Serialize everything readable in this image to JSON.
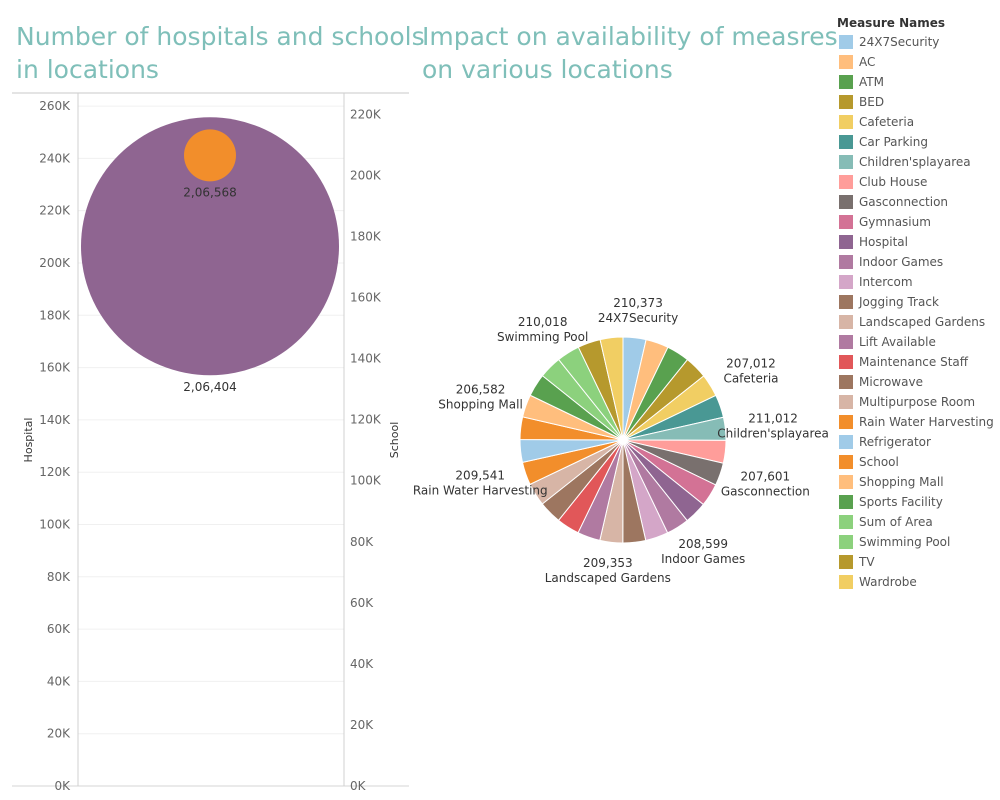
{
  "left_title": [
    "Number of hospitals and schools",
    "in locations"
  ],
  "right_title": [
    "Impact on availability of measres",
    "on various locations"
  ],
  "chart_data": [
    {
      "type": "scatter",
      "title": "Number of hospitals and schools in locations",
      "ylabel": "Hospital",
      "y2label": "School",
      "ylim": [
        0,
        265000
      ],
      "y2lim": [
        0,
        227000
      ],
      "yticks": [
        "0K",
        "20K",
        "40K",
        "60K",
        "80K",
        "100K",
        "120K",
        "140K",
        "160K",
        "180K",
        "200K",
        "220K",
        "240K",
        "260K"
      ],
      "y2ticks": [
        "0K",
        "20K",
        "40K",
        "60K",
        "80K",
        "100K",
        "120K",
        "140K",
        "160K",
        "180K",
        "200K",
        "220K"
      ],
      "points": [
        {
          "name": "Hospital",
          "value": 206404,
          "label": "2,06,404",
          "color": "#8f6591"
        },
        {
          "name": "School",
          "value": 206568,
          "label": "2,06,568",
          "color": "#f28e2b"
        }
      ]
    },
    {
      "type": "pie",
      "title": "Impact on availability of measres on various locations",
      "legend_title": "Measure Names",
      "legend_position": "right",
      "slices": [
        {
          "name": "24X7Security",
          "value": 210373,
          "color": "#a0cbe8"
        },
        {
          "name": "AC",
          "value": 209100,
          "color": "#ffbe7d"
        },
        {
          "name": "ATM",
          "value": 208500,
          "color": "#59a14f"
        },
        {
          "name": "BED",
          "value": 208300,
          "color": "#b6992d"
        },
        {
          "name": "Cafeteria",
          "value": 207012,
          "color": "#f1ce63"
        },
        {
          "name": "Car Parking",
          "value": 208800,
          "color": "#499894"
        },
        {
          "name": "Children'splayarea",
          "value": 211012,
          "color": "#86bcb6"
        },
        {
          "name": "Club House",
          "value": 208200,
          "color": "#ff9d9a"
        },
        {
          "name": "Gasconnection",
          "value": 207601,
          "color": "#79706e"
        },
        {
          "name": "Gymnasium",
          "value": 208900,
          "color": "#d37295"
        },
        {
          "name": "Hospital",
          "value": 206404,
          "color": "#8f6591"
        },
        {
          "name": "Indoor Games",
          "value": 208599,
          "color": "#b07aa1"
        },
        {
          "name": "Intercom",
          "value": 209000,
          "color": "#d4a6c8"
        },
        {
          "name": "Jogging Track",
          "value": 208700,
          "color": "#9d7660"
        },
        {
          "name": "Landscaped Gardens",
          "value": 209353,
          "color": "#d7b5a6"
        },
        {
          "name": "Lift Available",
          "value": 208600,
          "color": "#b07aa1"
        },
        {
          "name": "Maintenance Staff",
          "value": 208400,
          "color": "#e15759"
        },
        {
          "name": "Microwave",
          "value": 208900,
          "color": "#9d7660"
        },
        {
          "name": "Multipurpose Room",
          "value": 209200,
          "color": "#d7b5a6"
        },
        {
          "name": "Rain Water Harvesting",
          "value": 209541,
          "color": "#f28e2b"
        },
        {
          "name": "Refrigerator",
          "value": 208100,
          "color": "#a0cbe8"
        },
        {
          "name": "School",
          "value": 206568,
          "color": "#f28e2b"
        },
        {
          "name": "Shopping Mall",
          "value": 206582,
          "color": "#ffbe7d"
        },
        {
          "name": "Sports Facility",
          "value": 208700,
          "color": "#59a14f"
        },
        {
          "name": "Sum of Area",
          "value": 206900,
          "color": "#8cd17d"
        },
        {
          "name": "Swimming Pool",
          "value": 210018,
          "color": "#8cd17d"
        },
        {
          "name": "TV",
          "value": 208000,
          "color": "#b6992d"
        },
        {
          "name": "Wardrobe",
          "value": 208300,
          "color": "#f1ce63"
        }
      ],
      "labels": [
        {
          "name": "24X7Security",
          "label": "210,373"
        },
        {
          "name": "Cafeteria",
          "label": "207,012"
        },
        {
          "name": "Children'splayarea",
          "label": "211,012"
        },
        {
          "name": "Gasconnection",
          "label": "207,601"
        },
        {
          "name": "Indoor Games",
          "label": "208,599"
        },
        {
          "name": "Landscaped Gardens",
          "label": "209,353"
        },
        {
          "name": "Rain Water Harvesting",
          "label": "209,541"
        },
        {
          "name": "Shopping Mall",
          "label": "206,582"
        },
        {
          "name": "Swimming Pool",
          "label": "210,018"
        }
      ]
    }
  ]
}
